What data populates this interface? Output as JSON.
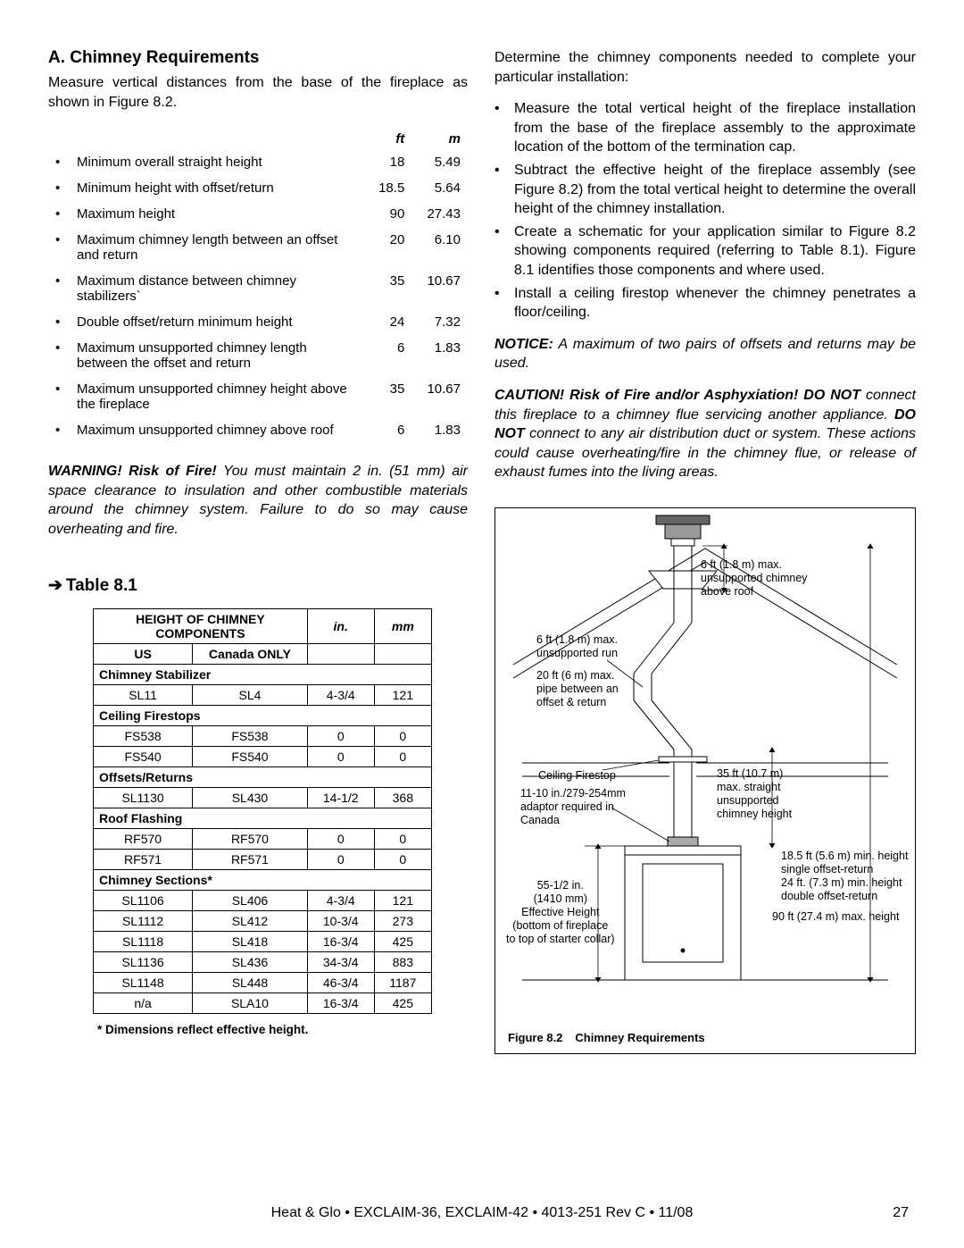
{
  "left": {
    "heading": "A. Chimney Requirements",
    "intro": "Measure vertical distances from the base of the fireplace as shown in Figure 8.2.",
    "measure": {
      "headers": {
        "ft": "ft",
        "m": "m"
      },
      "rows": [
        {
          "desc": "Minimum overall straight height",
          "ft": "18",
          "m": "5.49"
        },
        {
          "desc": "Minimum height with offset/return",
          "ft": "18.5",
          "m": "5.64"
        },
        {
          "desc": "Maximum height",
          "ft": "90",
          "m": "27.43"
        },
        {
          "desc": "Maximum chimney length between an offset and return",
          "ft": "20",
          "m": "6.10"
        },
        {
          "desc": "Maximum distance between chimney stabilizers`",
          "ft": "35",
          "m": "10.67"
        },
        {
          "desc": "Double offset/return minimum height",
          "ft": "24",
          "m": "7.32"
        },
        {
          "desc": "Maximum unsupported chimney length between the offset and return",
          "ft": "6",
          "m": "1.83"
        },
        {
          "desc": "Maximum unsupported chimney height above the fireplace",
          "ft": "35",
          "m": "10.67"
        },
        {
          "desc": "Maximum unsupported chimney above roof",
          "ft": "6",
          "m": "1.83"
        }
      ]
    },
    "warning": {
      "lead": "WARNING! Risk of Fire!",
      "body": " You must maintain 2 in. (51 mm) air space clearance to insulation and other combustible materials around the chimney system. Failure to do so may cause overheating and fire."
    },
    "tableHeading": "Table 8.1",
    "compTable": {
      "header1": "HEIGHT OF CHIMNEY COMPONENTS",
      "header2": "in.",
      "header3": "mm",
      "subUS": "US",
      "subCA": "Canada ONLY",
      "groups": [
        {
          "title": "Chimney Stabilizer",
          "rows": [
            {
              "us": "SL11",
              "ca": "SL4",
              "in": "4-3/4",
              "mm": "121"
            }
          ]
        },
        {
          "title": "Ceiling Firestops",
          "rows": [
            {
              "us": "FS538",
              "ca": "FS538",
              "in": "0",
              "mm": "0"
            },
            {
              "us": "FS540",
              "ca": "FS540",
              "in": "0",
              "mm": "0"
            }
          ]
        },
        {
          "title": "Offsets/Returns",
          "rows": [
            {
              "us": "SL1130",
              "ca": "SL430",
              "in": "14-1/2",
              "mm": "368"
            }
          ]
        },
        {
          "title": "Roof Flashing",
          "rows": [
            {
              "us": "RF570",
              "ca": "RF570",
              "in": "0",
              "mm": "0"
            },
            {
              "us": "RF571",
              "ca": "RF571",
              "in": "0",
              "mm": "0"
            }
          ]
        },
        {
          "title": "Chimney Sections*",
          "rows": [
            {
              "us": "SL1106",
              "ca": "SL406",
              "in": "4-3/4",
              "mm": "121"
            },
            {
              "us": "SL1112",
              "ca": "SL412",
              "in": "10-3/4",
              "mm": "273"
            },
            {
              "us": "SL1118",
              "ca": "SL418",
              "in": "16-3/4",
              "mm": "425"
            },
            {
              "us": "SL1136",
              "ca": "SL436",
              "in": "34-3/4",
              "mm": "883"
            },
            {
              "us": "SL1148",
              "ca": "SL448",
              "in": "46-3/4",
              "mm": "1187"
            },
            {
              "us": "n/a",
              "ca": "SLA10",
              "in": "16-3/4",
              "mm": "425"
            }
          ]
        }
      ]
    },
    "footnote": "* Dimensions reflect effective height."
  },
  "right": {
    "intro": "Determine the chimney components needed to complete your particular installation:",
    "bullets": [
      "Measure the total vertical height of the fireplace installation from the base of the fireplace assembly to the approximate location of the bottom of the termination cap.",
      "Subtract the effective height of the fireplace assembly (see Figure 8.2) from the total vertical height to determine the overall height of the chimney installation.",
      "Create a schematic for your application similar to Figure 8.2 showing components required (referring to Table 8.1). Figure 8.1 identifies those components and where used.",
      "Install a ceiling firestop whenever the chimney penetrates a floor/ceiling."
    ],
    "notice": {
      "lead": "NOTICE:",
      "body": " A maximum of two pairs of offsets and returns may be used."
    },
    "caution": {
      "lead": "CAUTION! Risk of Fire and/or Asphyxiation! DO NOT",
      "mid": " connect this fireplace to a chimney flue servicing another appliance. ",
      "donot": "DO NOT",
      "body": " connect to any air distribution duct or system. These actions could cause overheating/fire in the chimney flue, or release of exhaust fumes into the living areas."
    },
    "figure": {
      "labels": {
        "a": "6 ft (1.8 m) max.\nunsupported chimney\nabove roof",
        "b": "6 ft (1.8 m) max.\nunsupported run",
        "c": "20 ft (6 m) max.\npipe between an\noffset & return",
        "d": "Ceiling Firestop",
        "e": "11-10 in./279-254mm\nadaptor required in\nCanada",
        "f": "55-1/2 in.\n(1410 mm)\nEffective Height\n(bottom of fireplace\nto top of starter collar)",
        "g": "35 ft (10.7 m)\nmax. straight\nunsupported\nchimney height",
        "h": "18.5 ft (5.6 m) min. height\nsingle offset-return\n24 ft. (7.3 m) min. height\ndouble offset-return",
        "i": "90 ft (27.4 m) max. height"
      },
      "caption_num": "Figure 8.2",
      "caption_text": "Chimney Requirements"
    }
  },
  "footer": "Heat & Glo • EXCLAIM-36, EXCLAIM-42 • 4013-251 Rev C • 11/08",
  "pageNum": "27"
}
